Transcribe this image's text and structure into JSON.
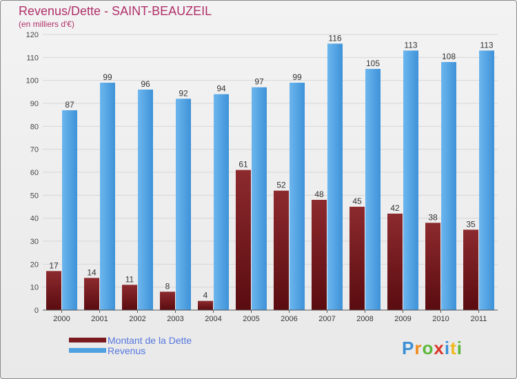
{
  "header": {
    "title": "Revenus/Dette - SAINT-BEAUZEIL",
    "subtitle": "(en milliers d'€)"
  },
  "colors": {
    "title": "#b0306a",
    "dette": "#7a1a1e",
    "revenus": "#4ea1e0",
    "legend_text": "#5577dd"
  },
  "chart_data": {
    "type": "bar",
    "title": "Revenus/Dette - SAINT-BEAUZEIL",
    "subtitle": "(en milliers d'€)",
    "categories": [
      "2000",
      "2001",
      "2002",
      "2003",
      "2004",
      "2005",
      "2006",
      "2007",
      "2008",
      "2009",
      "2010",
      "2011"
    ],
    "series": [
      {
        "name": "Montant de la Dette",
        "values": [
          17,
          14,
          11,
          8,
          4,
          61,
          52,
          48,
          45,
          42,
          38,
          35
        ]
      },
      {
        "name": "Revenus",
        "values": [
          87,
          99,
          96,
          92,
          94,
          97,
          99,
          116,
          105,
          113,
          108,
          113
        ]
      }
    ],
    "ylim": [
      0,
      120
    ],
    "yticks": [
      0,
      10,
      20,
      30,
      40,
      50,
      60,
      70,
      80,
      90,
      100,
      110,
      120
    ],
    "grid": true,
    "legend_position": "bottom-left"
  },
  "legend": {
    "items": [
      {
        "label": "Montant de la Dette"
      },
      {
        "label": "Revenus"
      }
    ]
  },
  "logo": {
    "text": "Proxiti",
    "letters": [
      "P",
      "r",
      "o",
      "x",
      "i",
      "t",
      "i"
    ],
    "letter_colors": [
      "#3a8fd6",
      "#f08a1c",
      "#5cb83a",
      "#d9352a",
      "#3a8fd6",
      "#f0b81c",
      "#5cb83a"
    ]
  }
}
